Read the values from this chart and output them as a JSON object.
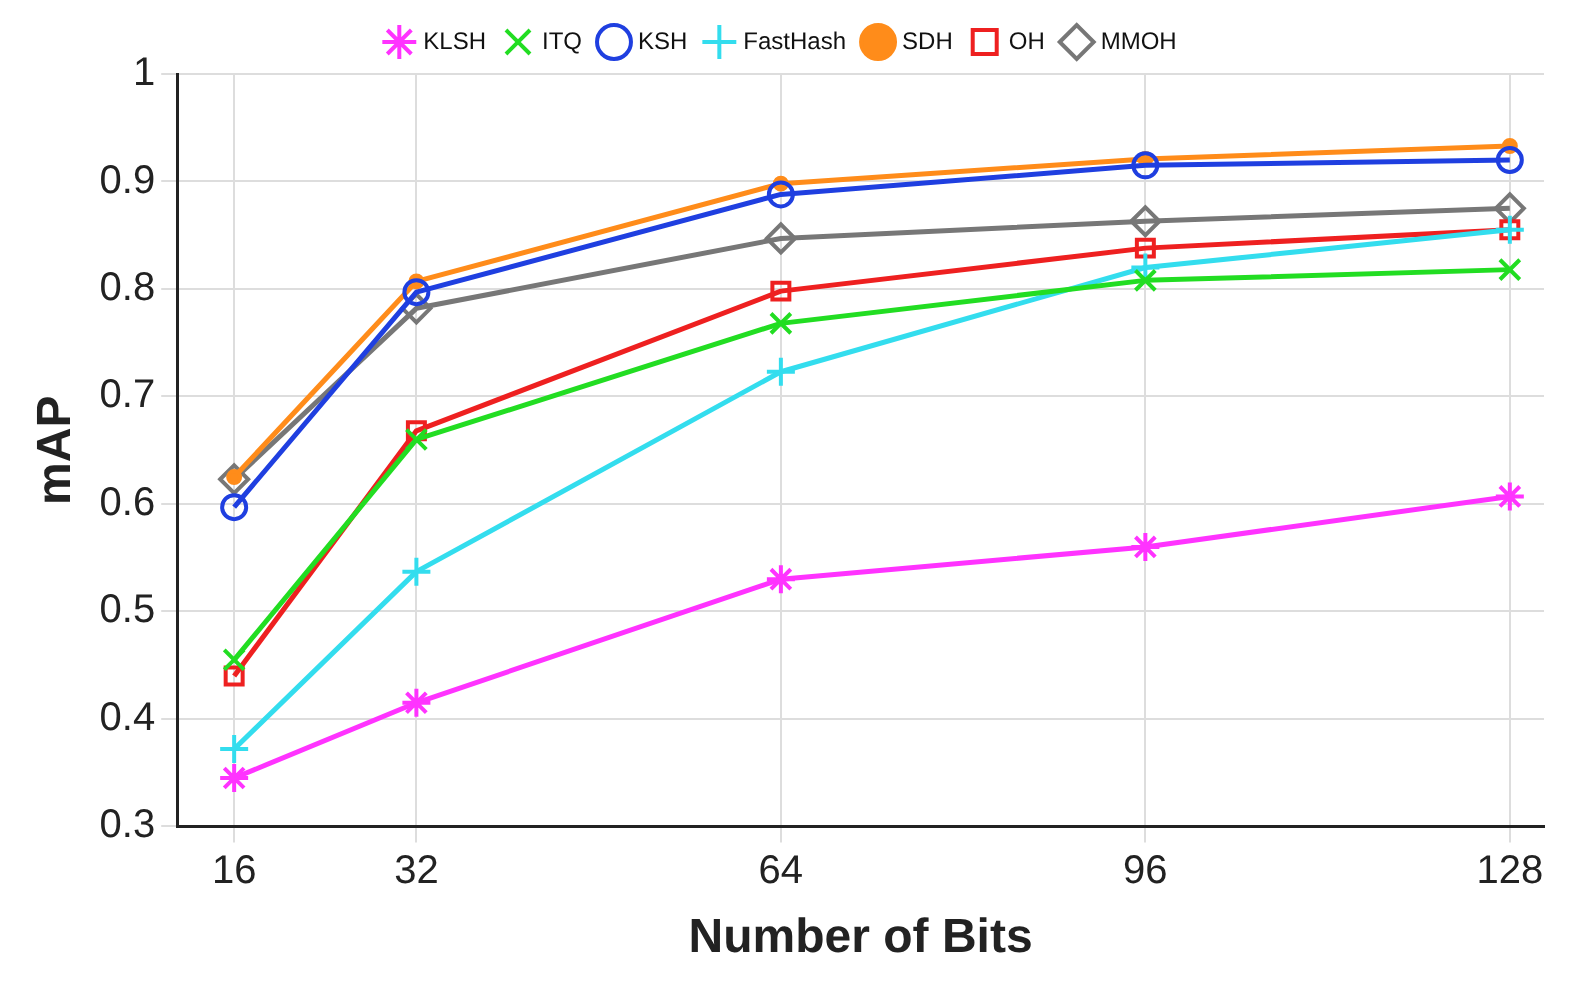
{
  "chart_data": {
    "type": "line",
    "xlabel": "Number of Bits",
    "ylabel": "mAP",
    "x": [
      16,
      32,
      64,
      96,
      128
    ],
    "xlim": [
      11,
      131
    ],
    "xticks": [
      16,
      32,
      64,
      96,
      128
    ],
    "ylim": [
      0.3,
      1
    ],
    "yticks": [
      0.3,
      0.4,
      0.5,
      0.6,
      0.7,
      0.8,
      0.9,
      1
    ],
    "grid": true,
    "legend": "top",
    "line_style": "solid",
    "series": [
      {
        "name": "KLSH",
        "color": "#ff33ff",
        "marker": "cross",
        "values": [
          0.345,
          0.415,
          0.53,
          0.56,
          0.607
        ]
      },
      {
        "name": "ITQ",
        "color": "#22dd22",
        "marker": "x",
        "values": [
          0.455,
          0.66,
          0.768,
          0.808,
          0.818
        ]
      },
      {
        "name": "KSH",
        "color": "#1f3fe0",
        "marker": "circle",
        "values": [
          0.597,
          0.797,
          0.888,
          0.915,
          0.92
        ]
      },
      {
        "name": "FastHash",
        "color": "#33ddee",
        "marker": "plus",
        "values": [
          0.372,
          0.537,
          0.723,
          0.82,
          0.855
        ]
      },
      {
        "name": "SDH",
        "color": "#ff8c1a",
        "marker": "point",
        "values": [
          0.625,
          0.807,
          0.898,
          0.921,
          0.933
        ]
      },
      {
        "name": "OH",
        "color": "#ee2020",
        "marker": "square",
        "values": [
          0.44,
          0.668,
          0.798,
          0.838,
          0.855
        ]
      },
      {
        "name": "MMOH",
        "color": "#777777",
        "marker": "diamond",
        "values": [
          0.623,
          0.782,
          0.847,
          0.863,
          0.875
        ]
      }
    ]
  }
}
